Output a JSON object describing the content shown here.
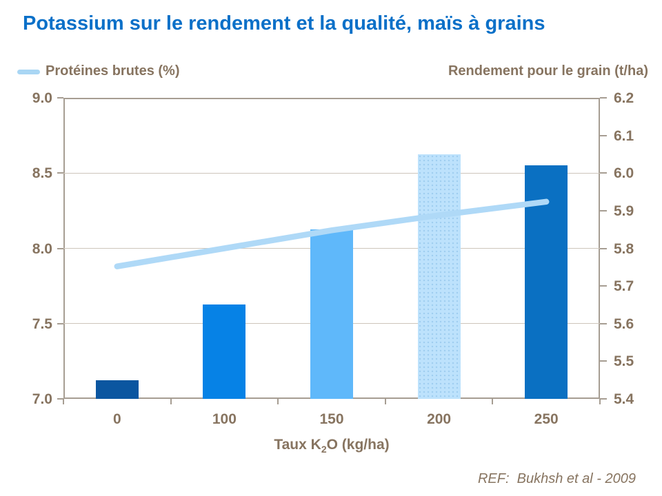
{
  "title": "Potassium sur le rendement et la qualité, maïs à grains",
  "legend": {
    "series_label": "Protéines brutes (%)",
    "right_axis_title": "Rendement pour le grain (t/ha)"
  },
  "x_axis": {
    "label_prefix": "Taux K",
    "label_sub": "2",
    "label_suffix": "O (kg/ha)"
  },
  "footer": {
    "ref_text": "REF:  Bukhsh et al - 2009"
  },
  "colors": {
    "title": "#0B70C8",
    "axis_text": "#877460",
    "axis_line": "#A69D92",
    "gridline": "#CDC5BB",
    "line_series": "#AFD9F7",
    "legend_swatch": "#A9D6F4",
    "bar_dot_pattern": "#9ECDEF"
  },
  "chart_data": {
    "type": "bar",
    "subtype": "bar+line combo, dual axis",
    "categories": [
      "0",
      "100",
      "150",
      "200",
      "250"
    ],
    "series": [
      {
        "name": "Rendement pour le grain (t/ha)",
        "type": "bar",
        "axis": "right",
        "values": [
          5.45,
          5.65,
          5.85,
          6.05,
          6.02
        ],
        "bar_colors": [
          "#0B56A0",
          "#0682E6",
          "#5FB8FA",
          "#BDE2FC",
          "#0A70C2"
        ],
        "bar_textures": [
          "solid",
          "solid",
          "solid",
          "dots",
          "solid"
        ]
      },
      {
        "name": "Protéines brutes (%)",
        "type": "line",
        "axis": "left",
        "values": [
          7.88,
          8.0,
          8.12,
          8.22,
          8.31
        ],
        "color": "#AFD9F7"
      }
    ],
    "left_axis": {
      "min": 7.0,
      "max": 9.0,
      "step": 0.5,
      "tick_labels": [
        "9.0",
        "8.5",
        "8.0",
        "7.5",
        "7.0"
      ]
    },
    "right_axis": {
      "min": 5.4,
      "max": 6.2,
      "step": 0.1,
      "tick_labels": [
        "6.2",
        "6.1",
        "6.0",
        "5.9",
        "5.8",
        "5.7",
        "5.6",
        "5.5",
        "5.4"
      ]
    },
    "title": "Potassium sur le rendement et la qualité, maïs à grains",
    "xlabel": "Taux K₂O (kg/ha)",
    "ylabel_left": "Protéines brutes (%)",
    "ylabel_right": "Rendement pour le grain (t/ha)",
    "grid": "horizontal gridlines at left-axis 0.5 steps",
    "legend_position": "top-left",
    "annotation": "REF:  Bukhsh et al - 2009"
  }
}
